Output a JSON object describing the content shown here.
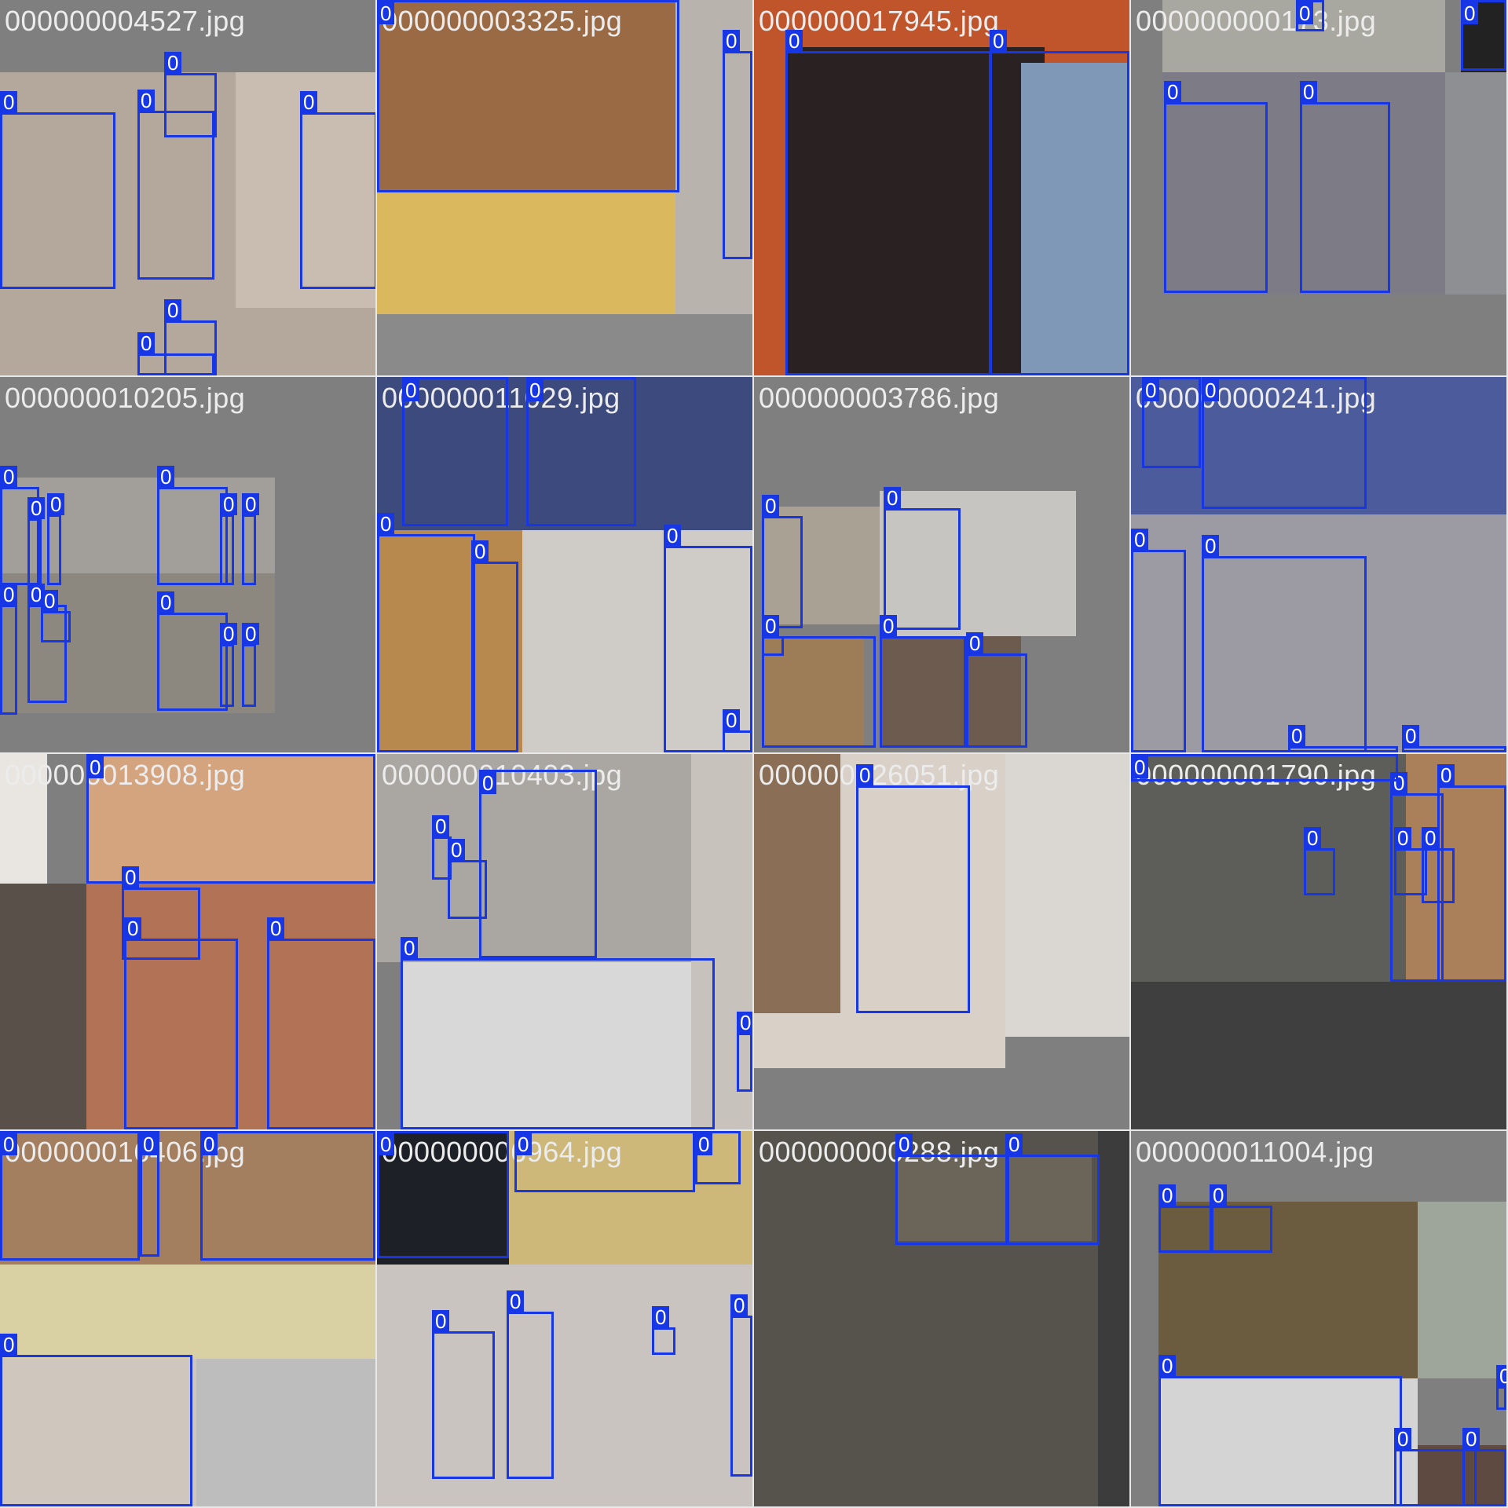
{
  "class_label": "0",
  "box_color": "#1736e6",
  "tiles": [
    {
      "filename": "000000004527.jpg",
      "pics": [
        [
          0,
          92,
          480,
          388,
          "#b4a89c"
        ],
        [
          0,
          0,
          480,
          92,
          "#7f7f7f"
        ],
        [
          300,
          92,
          180,
          300,
          "#c9bdb2"
        ]
      ],
      "boxes": [
        [
          0,
          143,
          147,
          225
        ],
        [
          175,
          141,
          98,
          215
        ],
        [
          209,
          93,
          67,
          82
        ],
        [
          382,
          143,
          98,
          225
        ],
        [
          175,
          450,
          98,
          28
        ],
        [
          209,
          408,
          67,
          70
        ]
      ]
    },
    {
      "filename": "000000003325.jpg",
      "pics": [
        [
          0,
          0,
          380,
          245,
          "#9a6a44"
        ],
        [
          0,
          245,
          380,
          155,
          "#d9b85e"
        ],
        [
          380,
          0,
          98,
          400,
          "#b8b3ad"
        ],
        [
          0,
          400,
          478,
          78,
          "#8a8a8a"
        ]
      ],
      "boxes": [
        [
          0,
          0,
          385,
          245
        ],
        [
          440,
          65,
          38,
          265
        ]
      ]
    },
    {
      "filename": "000000017945.jpg",
      "pics": [
        [
          0,
          0,
          478,
          478,
          "#c0552b"
        ],
        [
          40,
          60,
          330,
          418,
          "#2a2222"
        ],
        [
          340,
          80,
          138,
          398,
          "#7f98b8"
        ]
      ],
      "boxes": [
        [
          40,
          65,
          262,
          413
        ],
        [
          300,
          65,
          178,
          413
        ]
      ]
    },
    {
      "filename": "000000000173.jpg",
      "pics": [
        [
          40,
          0,
          360,
          92,
          "#a8a8a0"
        ],
        [
          40,
          92,
          360,
          283,
          "#7c7b86"
        ],
        [
          400,
          92,
          78,
          283,
          "#8d8f92"
        ],
        [
          420,
          0,
          58,
          92,
          "#222"
        ]
      ],
      "boxes": [
        [
          42,
          130,
          132,
          243
        ],
        [
          215,
          130,
          115,
          243
        ],
        [
          210,
          0,
          36,
          40
        ],
        [
          420,
          0,
          58,
          90
        ]
      ]
    },
    {
      "filename": "000000010205.jpg",
      "pics": [
        [
          0,
          128,
          350,
          122,
          "#a29f9b"
        ],
        [
          0,
          250,
          350,
          178,
          "#8c877f"
        ],
        [
          0,
          0,
          478,
          128,
          "#7f7f7f"
        ]
      ],
      "boxes": [
        [
          0,
          140,
          50,
          125
        ],
        [
          35,
          180,
          18,
          90
        ],
        [
          60,
          175,
          18,
          90
        ],
        [
          200,
          140,
          90,
          125
        ],
        [
          280,
          175,
          18,
          90
        ],
        [
          308,
          175,
          18,
          90
        ],
        [
          0,
          290,
          22,
          140
        ],
        [
          35,
          290,
          50,
          125
        ],
        [
          52,
          298,
          38,
          40
        ],
        [
          200,
          300,
          90,
          125
        ],
        [
          280,
          340,
          18,
          80
        ],
        [
          308,
          340,
          18,
          80
        ]
      ]
    },
    {
      "filename": "000000011029.jpg",
      "pics": [
        [
          0,
          0,
          478,
          195,
          "#3c4a7d"
        ],
        [
          0,
          195,
          185,
          283,
          "#b8894f"
        ],
        [
          185,
          195,
          293,
          283,
          "#cfcbc7"
        ]
      ],
      "boxes": [
        [
          32,
          0,
          135,
          190
        ],
        [
          190,
          0,
          140,
          190
        ],
        [
          0,
          200,
          125,
          278
        ],
        [
          120,
          235,
          60,
          243
        ],
        [
          365,
          215,
          113,
          263
        ],
        [
          440,
          450,
          38,
          28
        ]
      ]
    },
    {
      "filename": "000000003786.jpg",
      "pics": [
        [
          10,
          165,
          150,
          150,
          "#a9a193"
        ],
        [
          160,
          145,
          250,
          185,
          "#c7c5c2"
        ],
        [
          10,
          330,
          130,
          142,
          "#9c7d57"
        ],
        [
          160,
          330,
          180,
          142,
          "#6e5b4f"
        ]
      ],
      "boxes": [
        [
          10,
          177,
          52,
          143
        ],
        [
          165,
          167,
          98,
          155
        ],
        [
          10,
          330,
          28,
          25
        ],
        [
          10,
          330,
          145,
          142
        ],
        [
          160,
          330,
          110,
          142
        ],
        [
          270,
          352,
          78,
          120
        ]
      ]
    },
    {
      "filename": "000000000241.jpg",
      "pics": [
        [
          0,
          0,
          478,
          175,
          "#4c5b9b"
        ],
        [
          0,
          175,
          478,
          303,
          "#9c9aa2"
        ]
      ],
      "boxes": [
        [
          14,
          0,
          75,
          116
        ],
        [
          90,
          0,
          210,
          168
        ],
        [
          0,
          220,
          70,
          258
        ],
        [
          90,
          228,
          210,
          250
        ],
        [
          200,
          470,
          140,
          8
        ],
        [
          345,
          470,
          133,
          8
        ]
      ]
    },
    {
      "filename": "000000013908.jpg",
      "pics": [
        [
          0,
          0,
          60,
          165,
          "#e9e6e2"
        ],
        [
          110,
          0,
          368,
          165,
          "#d4a47f"
        ],
        [
          0,
          165,
          110,
          313,
          "#59504a"
        ],
        [
          110,
          165,
          368,
          313,
          "#b17255"
        ]
      ],
      "boxes": [
        [
          110,
          0,
          368,
          165
        ],
        [
          155,
          170,
          100,
          92
        ],
        [
          158,
          235,
          145,
          243
        ],
        [
          340,
          235,
          138,
          243
        ]
      ]
    },
    {
      "filename": "000000010403.jpg",
      "pics": [
        [
          0,
          0,
          478,
          265,
          "#aaa6a1"
        ],
        [
          30,
          265,
          400,
          213,
          "#d8d8d8"
        ],
        [
          400,
          0,
          78,
          478,
          "#c7c2bc"
        ]
      ],
      "boxes": [
        [
          130,
          20,
          150,
          240
        ],
        [
          70,
          105,
          25,
          55
        ],
        [
          90,
          135,
          50,
          75
        ],
        [
          30,
          260,
          400,
          218
        ],
        [
          458,
          355,
          20,
          75
        ]
      ]
    },
    {
      "filename": "000000026051.jpg",
      "pics": [
        [
          0,
          0,
          320,
          400,
          "#d9d1c7"
        ],
        [
          0,
          0,
          110,
          330,
          "#8a6e55"
        ],
        [
          320,
          0,
          158,
          360,
          "#dad7d3"
        ]
      ],
      "boxes": [
        [
          130,
          40,
          145,
          290
        ]
      ]
    },
    {
      "filename": "000000001790.jpg",
      "pics": [
        [
          0,
          0,
          350,
          290,
          "#5d5e59"
        ],
        [
          350,
          0,
          128,
          400,
          "#a98059"
        ],
        [
          0,
          290,
          478,
          188,
          "#3f3f3f"
        ]
      ],
      "boxes": [
        [
          220,
          120,
          40,
          60
        ],
        [
          335,
          120,
          42,
          60
        ],
        [
          370,
          120,
          42,
          70
        ],
        [
          330,
          50,
          68,
          240
        ],
        [
          390,
          40,
          88,
          250
        ],
        [
          0,
          0,
          340,
          35
        ]
      ]
    },
    {
      "filename": "000000016406.jpg",
      "pics": [
        [
          0,
          0,
          478,
          170,
          "#a37e5f"
        ],
        [
          0,
          170,
          478,
          120,
          "#d9d1a3"
        ],
        [
          0,
          290,
          250,
          188,
          "#cfc6bd"
        ],
        [
          250,
          290,
          228,
          188,
          "#bdbdbd"
        ]
      ],
      "boxes": [
        [
          0,
          0,
          178,
          165
        ],
        [
          178,
          0,
          25,
          160
        ],
        [
          255,
          0,
          223,
          165
        ],
        [
          0,
          285,
          245,
          193
        ]
      ]
    },
    {
      "filename": "000000006964.jpg",
      "pics": [
        [
          0,
          0,
          168,
          170,
          "#1e2028"
        ],
        [
          168,
          0,
          310,
          170,
          "#cdb779"
        ],
        [
          0,
          170,
          478,
          308,
          "#c9c4bf"
        ]
      ],
      "boxes": [
        [
          0,
          0,
          168,
          162
        ],
        [
          175,
          0,
          230,
          78
        ],
        [
          405,
          0,
          58,
          68
        ],
        [
          70,
          255,
          80,
          188
        ],
        [
          165,
          230,
          60,
          213
        ],
        [
          350,
          250,
          30,
          35
        ],
        [
          450,
          235,
          28,
          205
        ]
      ]
    },
    {
      "filename": "000000000288.jpg",
      "pics": [
        [
          0,
          0,
          438,
          478,
          "#55534c"
        ],
        [
          438,
          0,
          40,
          478,
          "#3c3c3c"
        ],
        [
          180,
          30,
          250,
          110,
          "#6b6559"
        ]
      ],
      "boxes": [
        [
          180,
          30,
          145,
          115
        ],
        [
          320,
          30,
          120,
          115
        ]
      ]
    },
    {
      "filename": "000000011004.jpg",
      "pics": [
        [
          35,
          90,
          330,
          225,
          "#6c5c3f"
        ],
        [
          365,
          90,
          113,
          225,
          "#9ea59b"
        ],
        [
          35,
          315,
          330,
          163,
          "#d4d4d4"
        ],
        [
          365,
          400,
          113,
          78,
          "#5e4a40"
        ]
      ],
      "boxes": [
        [
          35,
          95,
          70,
          60
        ],
        [
          100,
          95,
          80,
          60
        ],
        [
          35,
          312,
          310,
          166
        ],
        [
          335,
          405,
          105,
          73
        ],
        [
          422,
          405,
          56,
          73
        ],
        [
          465,
          325,
          13,
          30
        ]
      ]
    }
  ]
}
